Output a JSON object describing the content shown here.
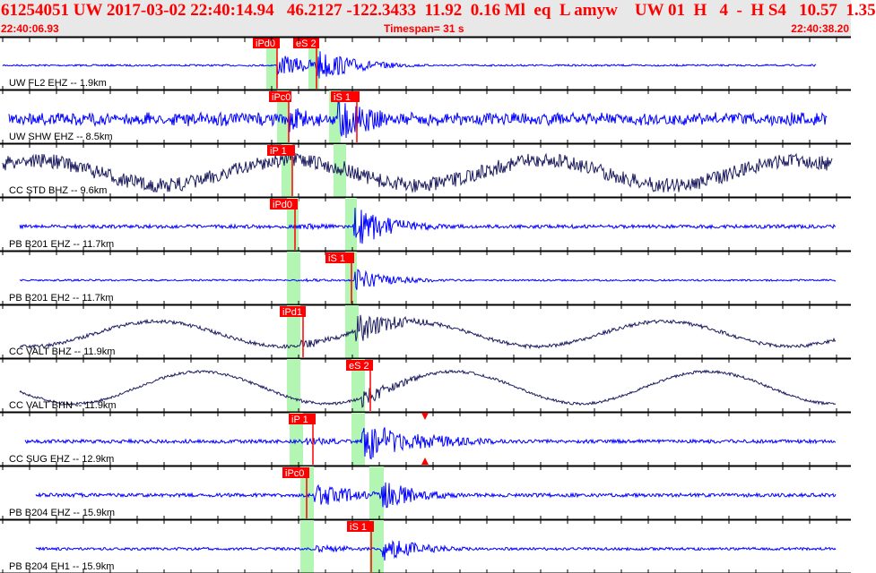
{
  "header": {
    "title": "61254051 UW 2017-03-02 22:40:14.94   46.2127 -122.3433  11.92  0.16 Ml  eq  L amyw    UW 01  H   4  -  H S4   10.57  1.35",
    "start_time": "22:40:06.93",
    "timespan": "Timespan=  31 s",
    "end_time": "22:40:38.20"
  },
  "colors": {
    "pick": "#ff0000",
    "window": "#b3f5b3",
    "trace_blue": "#0000ff",
    "trace_navy": "#1c1c60"
  },
  "channels": [
    {
      "label": "UW FL2 EHZ -- 1.9km",
      "picks": [
        "iPd0",
        "eS 2"
      ],
      "color": "blue"
    },
    {
      "label": "UW SHW EHZ -- 8.5km",
      "picks": [
        "iPc0",
        "iS 1"
      ],
      "color": "blue"
    },
    {
      "label": "CC STD BHZ -- 9.6km",
      "picks": [
        "iP 1"
      ],
      "color": "navy"
    },
    {
      "label": "PB B201 EHZ -- 11.7km",
      "picks": [
        "iPd0"
      ],
      "color": "blue"
    },
    {
      "label": "PB B201 EH2 -- 11.7km",
      "picks": [
        "iS 1"
      ],
      "color": "blue"
    },
    {
      "label": "CC VALT BHZ -- 11.9km",
      "picks": [
        "iPd1"
      ],
      "color": "navy"
    },
    {
      "label": "CC VALT BHN -- 11.9km",
      "picks": [
        "eS 2"
      ],
      "color": "navy"
    },
    {
      "label": "CC SUG EHZ -- 12.9km",
      "picks": [
        "iP 1"
      ],
      "color": "blue"
    },
    {
      "label": "PB B204 EHZ -- 15.9km",
      "picks": [
        "iPc0"
      ],
      "color": "blue"
    },
    {
      "label": "PB B204 EH1 -- 15.9km",
      "picks": [
        "iS 1"
      ],
      "color": "blue"
    }
  ]
}
